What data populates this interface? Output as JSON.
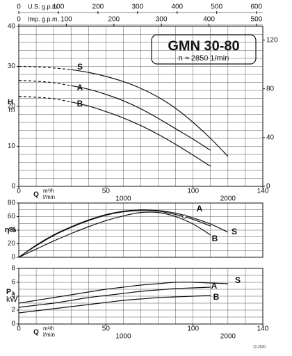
{
  "model": "GMN 30-80",
  "speed": "n ≈ 2850 1/min",
  "code": "72-2020",
  "chart_data": [
    {
      "type": "line",
      "ylabel": "H",
      "yunit": "m",
      "xlabel": "Q",
      "xunit": "m³/h",
      "x2unit": "l/min",
      "xlim": [
        0,
        140
      ],
      "xticks": [
        0,
        50,
        100,
        140
      ],
      "x2lim": [
        0,
        2333.3
      ],
      "x2ticks": [
        0,
        1000,
        2000
      ],
      "x3label": "U.S. g.p.m.",
      "x3lim": [
        0,
        616.4
      ],
      "x3ticks": [
        0,
        100,
        200,
        300,
        400,
        500,
        600
      ],
      "x4label": "Imp. g.p.m.",
      "x4lim": [
        0,
        513.2
      ],
      "x4ticks": [
        0,
        100,
        200,
        300,
        400,
        500
      ],
      "ylim": [
        0,
        40
      ],
      "yticks": [
        0,
        10,
        20,
        30,
        40
      ],
      "y2lim": [
        0,
        131.2
      ],
      "y2ticks": [
        0,
        40,
        80,
        120
      ],
      "xgrid": [
        0,
        10,
        20,
        30,
        40,
        50,
        60,
        70,
        80,
        90,
        100,
        110,
        120,
        130,
        140
      ],
      "ygrid": [
        0,
        2,
        4,
        6,
        8,
        10,
        12,
        14,
        16,
        18,
        20,
        22,
        24,
        26,
        28,
        30,
        32,
        34,
        36,
        38,
        40
      ],
      "dashed_below_x": 30,
      "x": [
        0,
        10,
        20,
        30,
        40,
        50,
        60,
        70,
        80,
        90,
        100,
        110,
        120
      ],
      "series": [
        {
          "name": "S",
          "color": "#111111",
          "values": [
            30,
            29.9,
            29.6,
            29.2,
            28.5,
            27.5,
            26.2,
            24.5,
            22.3,
            19.5,
            16,
            12,
            7.5
          ]
        },
        {
          "name": "A",
          "color": "#111111",
          "values": [
            26.5,
            26.3,
            25.9,
            25.2,
            24.3,
            23,
            21.4,
            19.4,
            17,
            14.4,
            11.8,
            9,
            null
          ]
        },
        {
          "name": "B",
          "color": "#111111",
          "values": [
            22.5,
            22.3,
            21.9,
            21.1,
            20.1,
            18.7,
            17.1,
            15.2,
            13,
            10.5,
            7.8,
            5,
            null
          ]
        }
      ]
    },
    {
      "type": "line",
      "ylabel": "η%",
      "xlim": [
        0,
        140
      ],
      "ylim": [
        0,
        80
      ],
      "yticks": [
        0,
        20,
        40,
        60,
        80
      ],
      "xgrid": [
        0,
        10,
        20,
        30,
        40,
        50,
        60,
        70,
        80,
        90,
        100,
        110,
        120,
        130,
        140
      ],
      "ygrid": [
        0,
        10,
        20,
        30,
        40,
        50,
        60,
        70,
        80
      ],
      "x": [
        0,
        10,
        20,
        30,
        40,
        50,
        60,
        70,
        80,
        90,
        100,
        110,
        120
      ],
      "marker": {
        "x": 95,
        "y": 60
      },
      "series": [
        {
          "name": "S",
          "color": "#111111",
          "values": [
            0,
            18,
            33,
            45,
            55,
            63,
            68,
            70,
            69,
            65,
            58,
            49,
            37
          ]
        },
        {
          "name": "A",
          "color": "#111111",
          "values": [
            0,
            17,
            32,
            44,
            54,
            62,
            67,
            69,
            68,
            63,
            56,
            46,
            null
          ]
        },
        {
          "name": "B",
          "color": "#111111",
          "values": [
            0,
            12,
            24,
            35,
            45,
            54,
            61,
            66,
            66,
            60,
            49,
            33,
            null
          ]
        }
      ]
    },
    {
      "type": "line",
      "ylabel": "P₂",
      "yunit": "kW",
      "xlabel": "Q",
      "xunit": "m³/h",
      "x2unit": "l/min",
      "xlim": [
        0,
        140
      ],
      "xticks": [
        0,
        50,
        100,
        140
      ],
      "x2lim": [
        0,
        2333.3
      ],
      "x2ticks": [
        0,
        1000,
        2000
      ],
      "ylim": [
        0,
        8
      ],
      "yticks": [
        0,
        2,
        4,
        6,
        8
      ],
      "xgrid": [
        0,
        10,
        20,
        30,
        40,
        50,
        60,
        70,
        80,
        90,
        100,
        110,
        120,
        130,
        140
      ],
      "ygrid": [
        0,
        1,
        2,
        3,
        4,
        5,
        6,
        7,
        8
      ],
      "x": [
        0,
        10,
        20,
        30,
        40,
        50,
        60,
        70,
        80,
        90,
        100,
        110,
        120
      ],
      "series": [
        {
          "name": "S",
          "color": "#111111",
          "values": [
            3,
            3.4,
            3.8,
            4.2,
            4.6,
            5,
            5.3,
            5.6,
            5.8,
            6,
            6,
            5.9,
            5.8
          ]
        },
        {
          "name": "A",
          "color": "#111111",
          "values": [
            2.4,
            2.7,
            3,
            3.4,
            3.8,
            4.1,
            4.4,
            4.7,
            4.9,
            5.1,
            5.2,
            5.3,
            null
          ]
        },
        {
          "name": "B",
          "color": "#111111",
          "values": [
            1.6,
            1.9,
            2.2,
            2.5,
            2.8,
            3.1,
            3.4,
            3.6,
            3.8,
            3.9,
            4,
            4.1,
            null
          ]
        }
      ]
    }
  ]
}
